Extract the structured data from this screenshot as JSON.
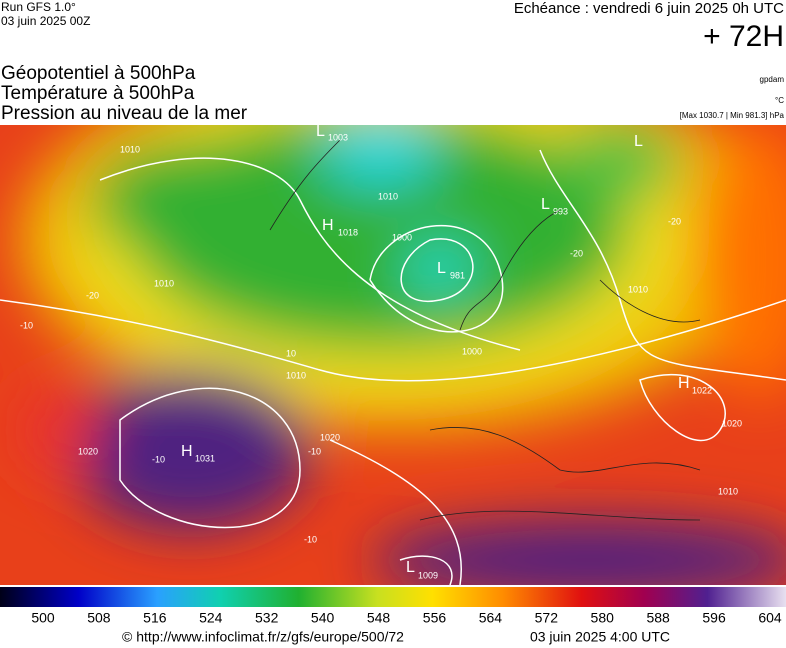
{
  "header": {
    "run": "Run GFS 1.0°",
    "run_date": "03 juin 2025 00Z",
    "echeance": "Echéance : vendredi 6 juin 2025 0h UTC",
    "lead": "+ 72H",
    "titles": [
      "Géopotentiel à 500hPa",
      "Température à 500hPa",
      "Pression au niveau de la mer"
    ],
    "units": [
      "gpdam",
      "°C",
      "[Max 1030.7 | Min 981.3] hPa"
    ]
  },
  "centers": [
    {
      "letter": "L",
      "value": "1003"
    },
    {
      "letter": "H",
      "value": "1018"
    },
    {
      "letter": "L",
      "value": "981"
    },
    {
      "letter": "L",
      "value": "993"
    },
    {
      "letter": "L",
      "value": ""
    },
    {
      "letter": "H",
      "value": "1022"
    },
    {
      "letter": "H",
      "value": "1031"
    },
    {
      "letter": "L",
      "value": "1009"
    }
  ],
  "contour_labels": [
    "1010",
    "1000",
    "1010",
    "1000",
    "1010",
    "1020",
    "1010",
    "1020",
    "1010",
    "1020",
    "1010",
    "-20",
    "-20",
    "-10",
    "-10",
    "-10",
    "-10",
    "10",
    "-20"
  ],
  "colorbar": {
    "ticks": [
      500,
      508,
      516,
      524,
      532,
      540,
      548,
      556,
      564,
      572,
      580,
      588,
      596,
      604
    ]
  },
  "footer": {
    "url": "© http://www.infoclimat.fr/z/gfs/europe/500/72",
    "date": "03 juin 2025  4:00 UTC"
  }
}
